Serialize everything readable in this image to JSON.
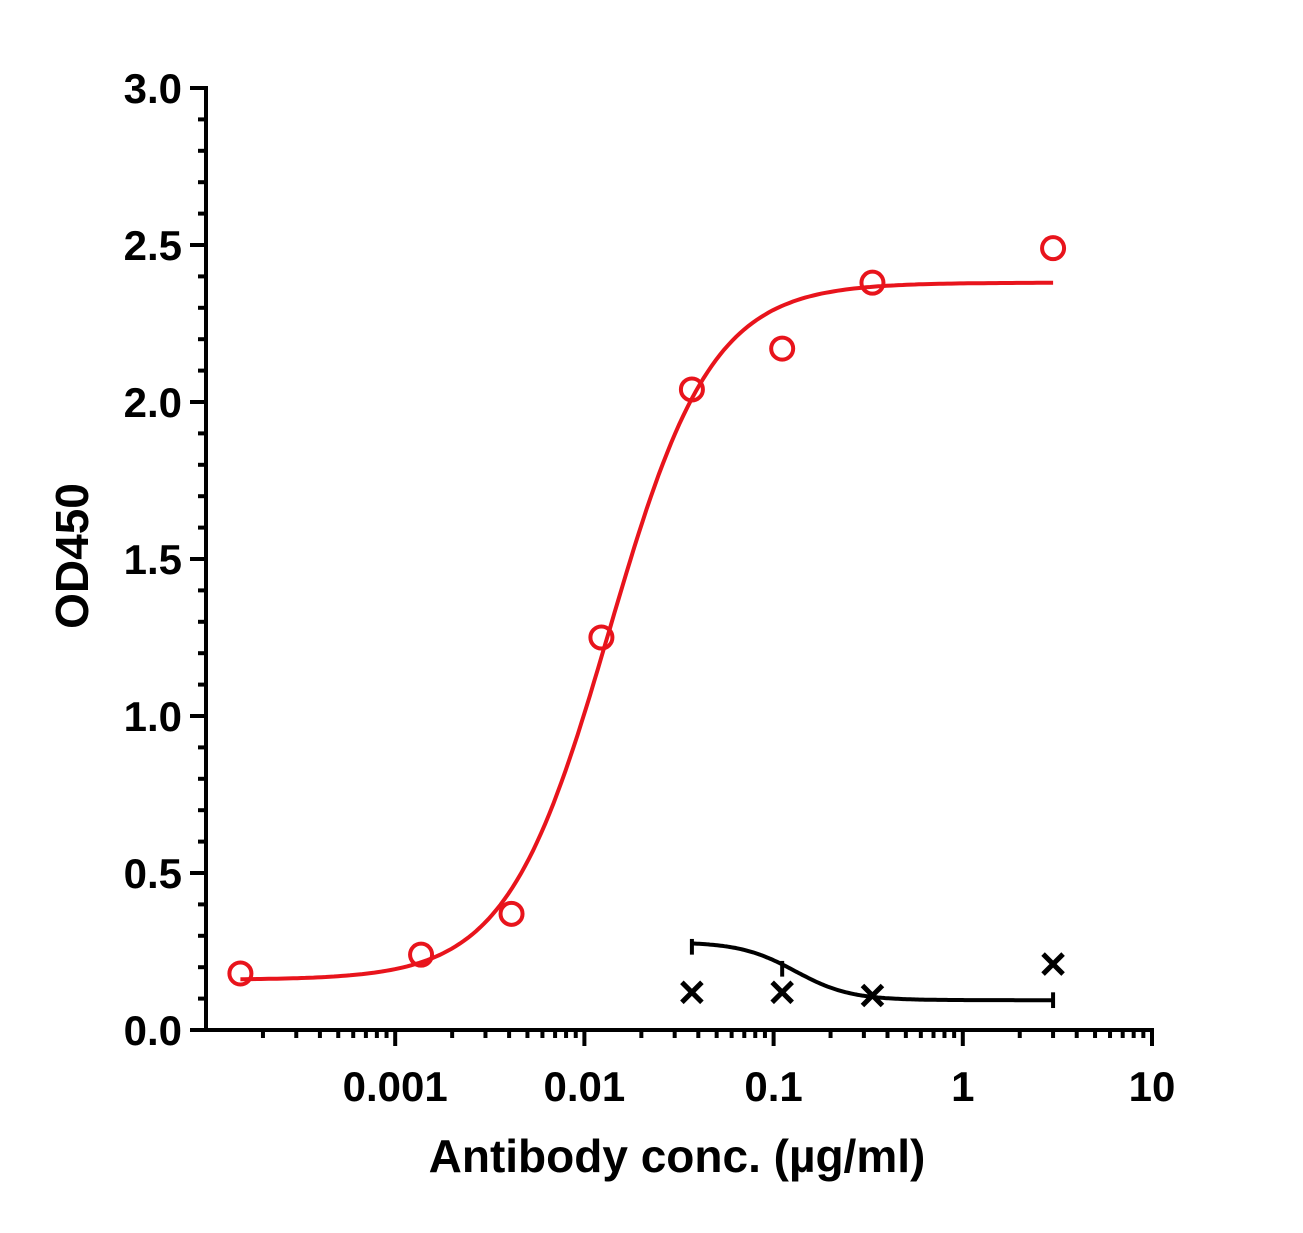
{
  "chart_data": {
    "type": "scatter",
    "xscale": "log",
    "xlim": [
      0.0001,
      10
    ],
    "ylim": [
      0.0,
      3.0
    ],
    "xlabel": "Antibody conc. (µg/ml)",
    "ylabel": "OD450",
    "title": "",
    "grid": false,
    "legend": "none",
    "x_ticks": [
      {
        "value": 0.001,
        "label": "0.001"
      },
      {
        "value": 0.01,
        "label": "0.01"
      },
      {
        "value": 0.1,
        "label": "0.1"
      },
      {
        "value": 1,
        "label": "1"
      },
      {
        "value": 10,
        "label": "10"
      }
    ],
    "y_ticks": [
      {
        "value": 0.0,
        "label": "0.0"
      },
      {
        "value": 0.5,
        "label": "0.5"
      },
      {
        "value": 1.0,
        "label": "1.0"
      },
      {
        "value": 1.5,
        "label": "1.5"
      },
      {
        "value": 2.0,
        "label": "2.0"
      },
      {
        "value": 2.5,
        "label": "2.5"
      },
      {
        "value": 3.0,
        "label": "3.0"
      }
    ],
    "series": [
      {
        "marker": "circle",
        "color": "#e8141c",
        "points": [
          {
            "x": 0.000152,
            "y": 0.18
          },
          {
            "x": 0.00137,
            "y": 0.24
          },
          {
            "x": 0.00412,
            "y": 0.37
          },
          {
            "x": 0.0123,
            "y": 1.25
          },
          {
            "x": 0.037,
            "y": 2.04
          },
          {
            "x": 0.111,
            "y": 2.17
          },
          {
            "x": 0.333,
            "y": 2.38
          },
          {
            "x": 3.0,
            "y": 2.49
          }
        ],
        "fit": {
          "bottom": 0.16,
          "top": 2.38,
          "ec50": 0.0135,
          "hill": 1.6,
          "x_range": [
            0.000152,
            3.0
          ]
        }
      },
      {
        "marker": "x",
        "color": "#000000",
        "points": [
          {
            "x": 0.037,
            "y": 0.12
          },
          {
            "x": 0.111,
            "y": 0.12
          },
          {
            "x": 0.333,
            "y": 0.11
          },
          {
            "x": 3.0,
            "y": 0.21
          }
        ],
        "fit": {
          "bottom": 0.095,
          "top": 0.28,
          "ec50": 0.13,
          "hill": -3.0,
          "x_range": [
            0.037,
            3.0
          ]
        },
        "error_caps": [
          {
            "x": 0.037,
            "low": 0.24,
            "high": 0.29
          },
          {
            "x": 0.111,
            "low": 0.17,
            "high": 0.22
          },
          {
            "x": 3.0,
            "low": 0.07,
            "high": 0.12
          }
        ]
      }
    ]
  }
}
